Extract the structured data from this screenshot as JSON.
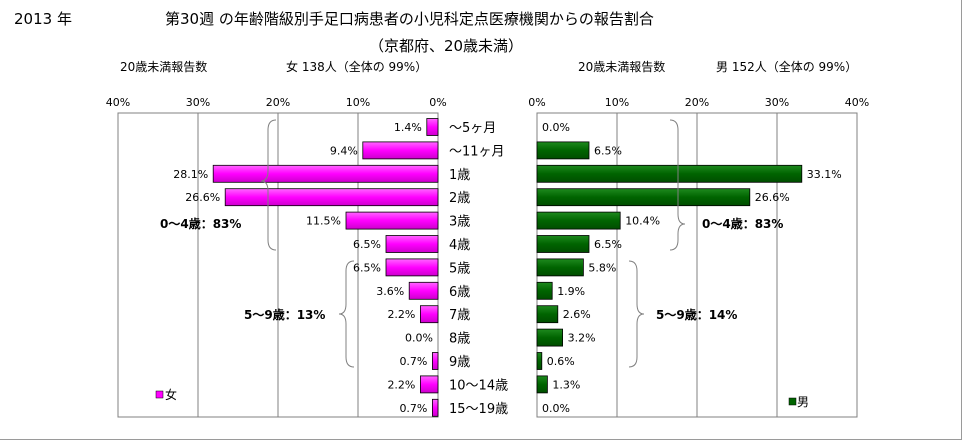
{
  "header": {
    "year": "2013 年",
    "title": "第30週 の年齢階級別手足口病患者の小児科定点医療機関からの報告割合",
    "subtitle": "（京都府、20歳未満）"
  },
  "panels": {
    "female": {
      "count_label": "20歳未満報告数",
      "summary": "女  138人（全体の  99%）",
      "legend": "女",
      "color": "#ff00ff"
    },
    "male": {
      "count_label": "20歳未満報告数",
      "summary": "男  152人（全体の  99%）",
      "legend": "男",
      "color": "#006400"
    }
  },
  "brackets": {
    "female_0_4": "0～4歳：83%",
    "female_5_9": "5～9歳：13%",
    "male_0_4": "0～4歳：83%",
    "male_5_9": "5～9歳：14%"
  },
  "chart_data": {
    "type": "bar",
    "orientation": "horizontal",
    "categories": [
      "～5ヶ月",
      "～11ヶ月",
      "1歳",
      "2歳",
      "3歳",
      "4歳",
      "5歳",
      "6歳",
      "7歳",
      "8歳",
      "9歳",
      "10～14歳",
      "15～19歳"
    ],
    "xlim": [
      0,
      40
    ],
    "x_ticks": [
      "40%",
      "30%",
      "20%",
      "10%",
      "0%"
    ],
    "x_ticks_male": [
      "0%",
      "10%",
      "20%",
      "30%",
      "40%"
    ],
    "grid": true,
    "series": [
      {
        "name": "女",
        "values": [
          1.4,
          9.4,
          28.1,
          26.6,
          11.5,
          6.5,
          6.5,
          3.6,
          2.2,
          0.0,
          0.7,
          2.2,
          0.7
        ],
        "labels": [
          "1.4%",
          "9.4%",
          "28.1%",
          "26.6%",
          "11.5%",
          "6.5%",
          "6.5%",
          "3.6%",
          "2.2%",
          "0.0%",
          "0.7%",
          "2.2%",
          "0.7%"
        ]
      },
      {
        "name": "男",
        "values": [
          0.0,
          6.5,
          33.1,
          26.6,
          10.4,
          6.5,
          5.8,
          1.9,
          2.6,
          3.2,
          0.6,
          1.3,
          0.0
        ],
        "labels": [
          "0.0%",
          "6.5%",
          "33.1%",
          "26.6%",
          "10.4%",
          "6.5%",
          "5.8%",
          "1.9%",
          "2.6%",
          "3.2%",
          "0.6%",
          "1.3%",
          "0.0%"
        ]
      }
    ]
  }
}
